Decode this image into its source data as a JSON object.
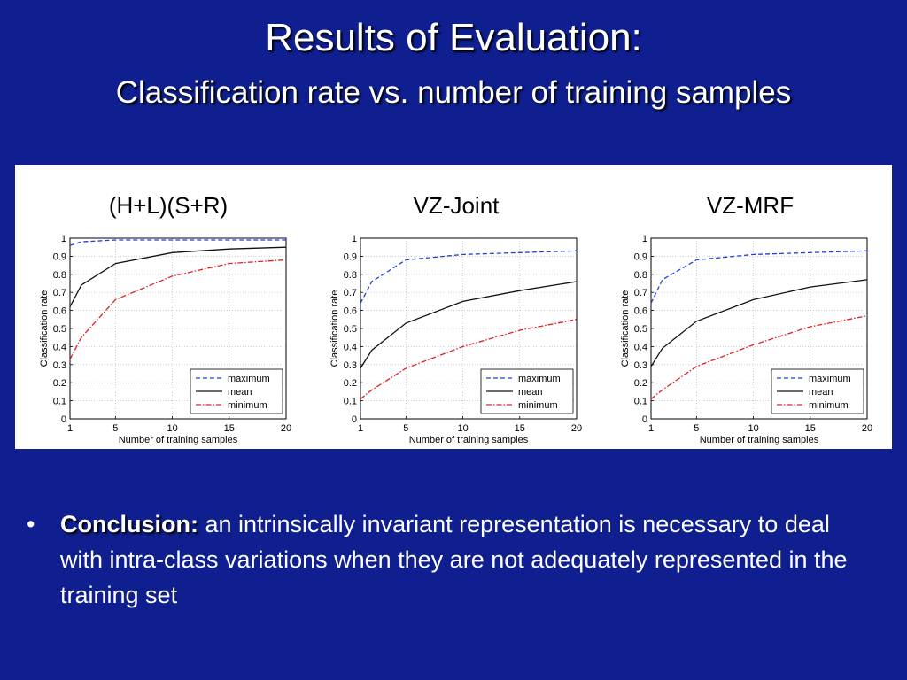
{
  "slide": {
    "title": "Results of Evaluation:",
    "subtitle": "Classification rate vs. number of training samples",
    "conclusion_bullet": "•",
    "conclusion_label": "Conclusion:",
    "conclusion_text": " an intrinsically invariant representation is necessary to deal with intra-class variations when they are not adequately represented in the training set"
  },
  "colors": {
    "background": "#0f1f8f",
    "maximum": "#1f3fe0",
    "mean": "#111111",
    "minimum": "#e02020"
  },
  "chart_data": [
    {
      "type": "line",
      "title": "(H+L)(S+R)",
      "xlabel": "Number of training samples",
      "ylabel": "Classification rate",
      "xlim": [
        1,
        20
      ],
      "ylim": [
        0,
        1
      ],
      "xticks": [
        1,
        5,
        10,
        15,
        20
      ],
      "yticks": [
        0,
        0.1,
        0.2,
        0.3,
        0.4,
        0.5,
        0.6,
        0.7,
        0.8,
        0.9,
        1
      ],
      "grid": true,
      "legend": "bottom-right",
      "x": [
        1,
        2,
        5,
        10,
        15,
        20
      ],
      "series": [
        {
          "name": "maximum",
          "style": "dashed",
          "values": [
            0.96,
            0.98,
            0.99,
            0.99,
            0.99,
            0.99
          ]
        },
        {
          "name": "mean",
          "style": "solid",
          "values": [
            0.62,
            0.74,
            0.86,
            0.92,
            0.94,
            0.95
          ]
        },
        {
          "name": "minimum",
          "style": "dashdot",
          "values": [
            0.33,
            0.45,
            0.66,
            0.79,
            0.86,
            0.88
          ]
        }
      ]
    },
    {
      "type": "line",
      "title": "VZ-Joint",
      "xlabel": "Number of training samples",
      "ylabel": "Classification rate",
      "xlim": [
        1,
        20
      ],
      "ylim": [
        0,
        1
      ],
      "xticks": [
        1,
        5,
        10,
        15,
        20
      ],
      "yticks": [
        0,
        0.1,
        0.2,
        0.3,
        0.4,
        0.5,
        0.6,
        0.7,
        0.8,
        0.9,
        1
      ],
      "grid": true,
      "legend": "bottom-right",
      "x": [
        1,
        2,
        5,
        10,
        15,
        20
      ],
      "series": [
        {
          "name": "maximum",
          "style": "dashed",
          "values": [
            0.64,
            0.76,
            0.88,
            0.91,
            0.92,
            0.93
          ]
        },
        {
          "name": "mean",
          "style": "solid",
          "values": [
            0.28,
            0.38,
            0.53,
            0.65,
            0.71,
            0.76
          ]
        },
        {
          "name": "minimum",
          "style": "dashdot",
          "values": [
            0.11,
            0.16,
            0.28,
            0.4,
            0.49,
            0.55
          ]
        }
      ]
    },
    {
      "type": "line",
      "title": "VZ-MRF",
      "xlabel": "Number of training samples",
      "ylabel": "Classification rate",
      "xlim": [
        1,
        20
      ],
      "ylim": [
        0,
        1
      ],
      "xticks": [
        1,
        5,
        10,
        15,
        20
      ],
      "yticks": [
        0,
        0.1,
        0.2,
        0.3,
        0.4,
        0.5,
        0.6,
        0.7,
        0.8,
        0.9,
        1
      ],
      "grid": true,
      "legend": "bottom-right",
      "x": [
        1,
        2,
        5,
        10,
        15,
        20
      ],
      "series": [
        {
          "name": "maximum",
          "style": "dashed",
          "values": [
            0.64,
            0.77,
            0.88,
            0.91,
            0.92,
            0.93
          ]
        },
        {
          "name": "mean",
          "style": "solid",
          "values": [
            0.29,
            0.39,
            0.54,
            0.66,
            0.73,
            0.77
          ]
        },
        {
          "name": "minimum",
          "style": "dashdot",
          "values": [
            0.11,
            0.16,
            0.29,
            0.41,
            0.51,
            0.57
          ]
        }
      ]
    }
  ]
}
